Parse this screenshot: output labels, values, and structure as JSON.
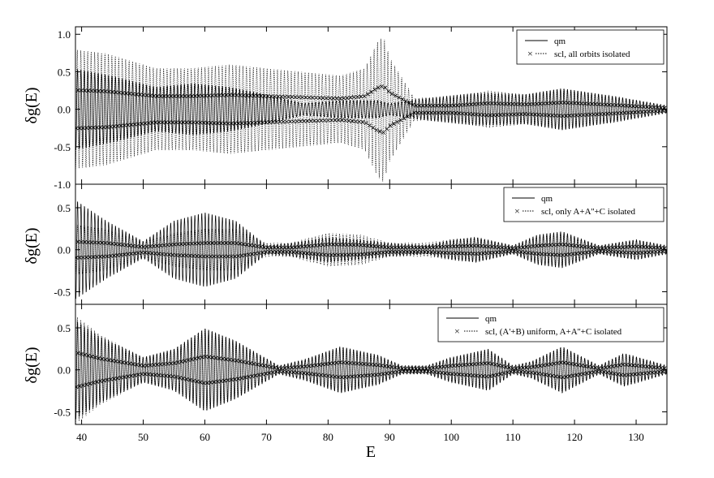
{
  "figure": {
    "xlabel": "E"
  },
  "chart_data": [
    {
      "type": "line",
      "ylabel": "δg(E)",
      "xlim": [
        39,
        135
      ],
      "ylim": [
        -1.0,
        1.1
      ],
      "yticks": [
        "-1.0",
        "-0.5",
        "0.0",
        "0.5",
        "1.0"
      ],
      "ytick_values": [
        -1.0,
        -0.5,
        0.0,
        0.5,
        1.0
      ],
      "legend": {
        "position": "top-right",
        "entries": [
          {
            "label": "qm",
            "style": "solid"
          },
          {
            "label": "scl, all orbits isolated",
            "style": "dotted",
            "marker": "x"
          }
        ]
      },
      "series": [
        {
          "name": "qm",
          "style": "solid",
          "period": 0.56,
          "envelope": [
            [
              39,
              0.55
            ],
            [
              45,
              0.45
            ],
            [
              52,
              0.3
            ],
            [
              58,
              0.35
            ],
            [
              64,
              0.3
            ],
            [
              70,
              0.2
            ],
            [
              76,
              0.08
            ],
            [
              82,
              0.12
            ],
            [
              88,
              0.12
            ],
            [
              90,
              0.08
            ],
            [
              96,
              0.15
            ],
            [
              104,
              0.22
            ],
            [
              112,
              0.2
            ],
            [
              118,
              0.28
            ],
            [
              126,
              0.18
            ],
            [
              135,
              0.05
            ]
          ]
        },
        {
          "name": "scl, all orbits isolated",
          "style": "dotted",
          "marker": "x",
          "period": 0.56,
          "envelope": [
            [
              39,
              0.8
            ],
            [
              44,
              0.75
            ],
            [
              52,
              0.55
            ],
            [
              58,
              0.55
            ],
            [
              64,
              0.6
            ],
            [
              70,
              0.55
            ],
            [
              76,
              0.5
            ],
            [
              82,
              0.45
            ],
            [
              86,
              0.55
            ],
            [
              88,
              0.9
            ],
            [
              89,
              0.98
            ],
            [
              90,
              0.7
            ],
            [
              94,
              0.15
            ],
            [
              100,
              0.15
            ],
            [
              106,
              0.25
            ],
            [
              112,
              0.2
            ],
            [
              118,
              0.28
            ],
            [
              126,
              0.18
            ],
            [
              135,
              0.05
            ]
          ]
        }
      ]
    },
    {
      "type": "line",
      "ylabel": "δg(E)",
      "xlim": [
        39,
        135
      ],
      "ylim": [
        -0.65,
        0.78
      ],
      "yticks": [
        "-0.5",
        "0.0",
        "0.5"
      ],
      "ytick_values": [
        -0.5,
        0.0,
        0.5
      ],
      "legend": {
        "position": "top-right",
        "entries": [
          {
            "label": "qm",
            "style": "solid"
          },
          {
            "label": "scl, only A+A''+C isolated",
            "style": "dotted",
            "marker": "x"
          }
        ]
      },
      "series": [
        {
          "name": "qm",
          "style": "solid",
          "period": 0.56,
          "envelope": [
            [
              39,
              0.6
            ],
            [
              44,
              0.35
            ],
            [
              50,
              0.1
            ],
            [
              55,
              0.35
            ],
            [
              60,
              0.45
            ],
            [
              65,
              0.35
            ],
            [
              70,
              0.05
            ],
            [
              74,
              0.08
            ],
            [
              80,
              0.15
            ],
            [
              85,
              0.12
            ],
            [
              90,
              0.08
            ],
            [
              96,
              0.05
            ],
            [
              100,
              0.12
            ],
            [
              104,
              0.15
            ],
            [
              110,
              0.05
            ],
            [
              114,
              0.18
            ],
            [
              118,
              0.22
            ],
            [
              124,
              0.05
            ],
            [
              130,
              0.12
            ],
            [
              135,
              0.05
            ]
          ]
        },
        {
          "name": "scl, only A+A''+C isolated",
          "style": "dotted",
          "marker": "x",
          "period": 0.56,
          "envelope": [
            [
              39,
              0.3
            ],
            [
              44,
              0.25
            ],
            [
              50,
              0.1
            ],
            [
              55,
              0.2
            ],
            [
              60,
              0.25
            ],
            [
              65,
              0.25
            ],
            [
              70,
              0.08
            ],
            [
              74,
              0.08
            ],
            [
              80,
              0.2
            ],
            [
              85,
              0.18
            ],
            [
              90,
              0.08
            ],
            [
              96,
              0.08
            ],
            [
              100,
              0.12
            ],
            [
              104,
              0.15
            ],
            [
              110,
              0.05
            ],
            [
              114,
              0.15
            ],
            [
              118,
              0.2
            ],
            [
              124,
              0.05
            ],
            [
              130,
              0.12
            ],
            [
              135,
              0.05
            ]
          ]
        }
      ]
    },
    {
      "type": "line",
      "ylabel": "δg(E)",
      "xlim": [
        39,
        135
      ],
      "ylim": [
        -0.65,
        0.78
      ],
      "yticks": [
        "-0.5",
        "0.0",
        "0.5"
      ],
      "ytick_values": [
        -0.5,
        0.0,
        0.5
      ],
      "xticks": [
        "40",
        "50",
        "60",
        "70",
        "80",
        "90",
        "100",
        "110",
        "120",
        "130"
      ],
      "xtick_values": [
        40,
        50,
        60,
        70,
        80,
        90,
        100,
        110,
        120,
        130
      ],
      "legend": {
        "position": "top-right",
        "entries": [
          {
            "label": "qm",
            "style": "solid"
          },
          {
            "label": "scl, (A'+B) uniform, A+A''+C isolated",
            "style": "dotted",
            "marker": "x"
          }
        ]
      },
      "series": [
        {
          "name": "qm",
          "style": "solid",
          "period": 0.56,
          "envelope": [
            [
              39,
              0.6
            ],
            [
              43,
              0.4
            ],
            [
              50,
              0.15
            ],
            [
              55,
              0.25
            ],
            [
              60,
              0.5
            ],
            [
              65,
              0.35
            ],
            [
              72,
              0.05
            ],
            [
              76,
              0.12
            ],
            [
              82,
              0.28
            ],
            [
              88,
              0.18
            ],
            [
              92,
              0.05
            ],
            [
              96,
              0.05
            ],
            [
              100,
              0.15
            ],
            [
              106,
              0.25
            ],
            [
              110,
              0.05
            ],
            [
              113,
              0.1
            ],
            [
              118,
              0.28
            ],
            [
              124,
              0.05
            ],
            [
              128,
              0.2
            ],
            [
              135,
              0.05
            ]
          ]
        },
        {
          "name": "scl, (A'+B) uniform, A+A''+C isolated",
          "style": "dotted",
          "marker": "x",
          "period": 0.56,
          "envelope": [
            [
              39,
              0.65
            ],
            [
              43,
              0.42
            ],
            [
              50,
              0.15
            ],
            [
              55,
              0.25
            ],
            [
              60,
              0.5
            ],
            [
              65,
              0.35
            ],
            [
              72,
              0.05
            ],
            [
              76,
              0.12
            ],
            [
              82,
              0.28
            ],
            [
              88,
              0.18
            ],
            [
              92,
              0.05
            ],
            [
              96,
              0.05
            ],
            [
              100,
              0.15
            ],
            [
              106,
              0.25
            ],
            [
              110,
              0.05
            ],
            [
              113,
              0.1
            ],
            [
              118,
              0.28
            ],
            [
              124,
              0.05
            ],
            [
              128,
              0.2
            ],
            [
              135,
              0.05
            ]
          ]
        }
      ]
    }
  ]
}
